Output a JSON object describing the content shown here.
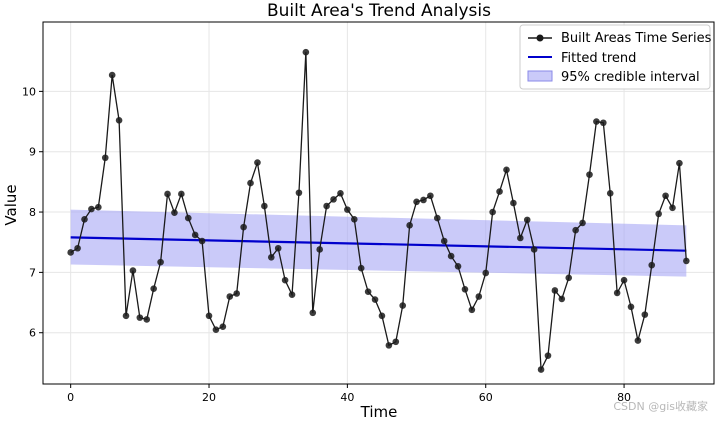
{
  "chart_data": {
    "type": "line",
    "title": "Built Area's Trend Analysis",
    "xlabel": "Time",
    "ylabel": "Value",
    "xlim": [
      -4,
      93
    ],
    "ylim": [
      5.15,
      11.15
    ],
    "xticks": [
      0,
      20,
      40,
      60,
      80
    ],
    "yticks": [
      6,
      7,
      8,
      9,
      10
    ],
    "grid": true,
    "legend_position": "top-right",
    "series": [
      {
        "name": "Built Areas Time Series",
        "color": "#1a1a1a",
        "x": [
          0,
          1,
          2,
          3,
          4,
          5,
          6,
          7,
          8,
          9,
          10,
          11,
          12,
          13,
          14,
          15,
          16,
          17,
          18,
          19,
          20,
          21,
          22,
          23,
          24,
          25,
          26,
          27,
          28,
          29,
          30,
          31,
          32,
          33,
          34,
          35,
          36,
          37,
          38,
          39,
          40,
          41,
          42,
          43,
          44,
          45,
          46,
          47,
          48,
          49,
          50,
          51,
          52,
          53,
          54,
          55,
          56,
          57,
          58,
          59,
          60,
          61,
          62,
          63,
          64,
          65,
          66,
          67,
          68,
          69,
          70,
          71,
          72,
          73,
          74,
          75,
          76,
          77,
          78,
          79,
          80,
          81,
          82,
          83,
          84,
          85,
          86,
          87,
          88,
          89
        ],
        "values": [
          7.33,
          7.4,
          7.88,
          8.05,
          8.08,
          8.9,
          10.27,
          9.52,
          6.28,
          7.03,
          6.25,
          6.22,
          6.73,
          7.17,
          8.3,
          7.99,
          8.3,
          7.9,
          7.62,
          7.52,
          6.28,
          6.05,
          6.1,
          6.6,
          6.65,
          7.75,
          8.48,
          8.82,
          8.1,
          7.25,
          7.4,
          6.87,
          6.63,
          8.32,
          10.65,
          6.33,
          7.38,
          8.1,
          8.21,
          8.31,
          8.04,
          7.88,
          7.07,
          6.68,
          6.55,
          6.28,
          5.79,
          5.85,
          6.45,
          7.78,
          8.17,
          8.2,
          8.27,
          7.9,
          7.52,
          7.27,
          7.1,
          6.72,
          6.38,
          6.6,
          6.99,
          8.0,
          8.34,
          8.7,
          8.15,
          7.57,
          7.87,
          7.38,
          5.39,
          5.62,
          6.7,
          6.56,
          6.91,
          7.7,
          7.82,
          8.62,
          9.5,
          9.48,
          8.31,
          6.66,
          6.87,
          6.43,
          5.87,
          6.3,
          7.12,
          7.97,
          8.27,
          8.07,
          8.81,
          7.19
        ]
      },
      {
        "name": "Fitted trend",
        "color": "#0000cc",
        "x": [
          0,
          89
        ],
        "values": [
          7.58,
          7.36
        ]
      }
    ],
    "band": {
      "name": "95% credible interval",
      "color": "#a7a7f5",
      "x": [
        0,
        89
      ],
      "upper": [
        8.04,
        7.78
      ],
      "lower": [
        7.13,
        6.93
      ]
    }
  },
  "watermark": "CSDN @gis收藏家"
}
